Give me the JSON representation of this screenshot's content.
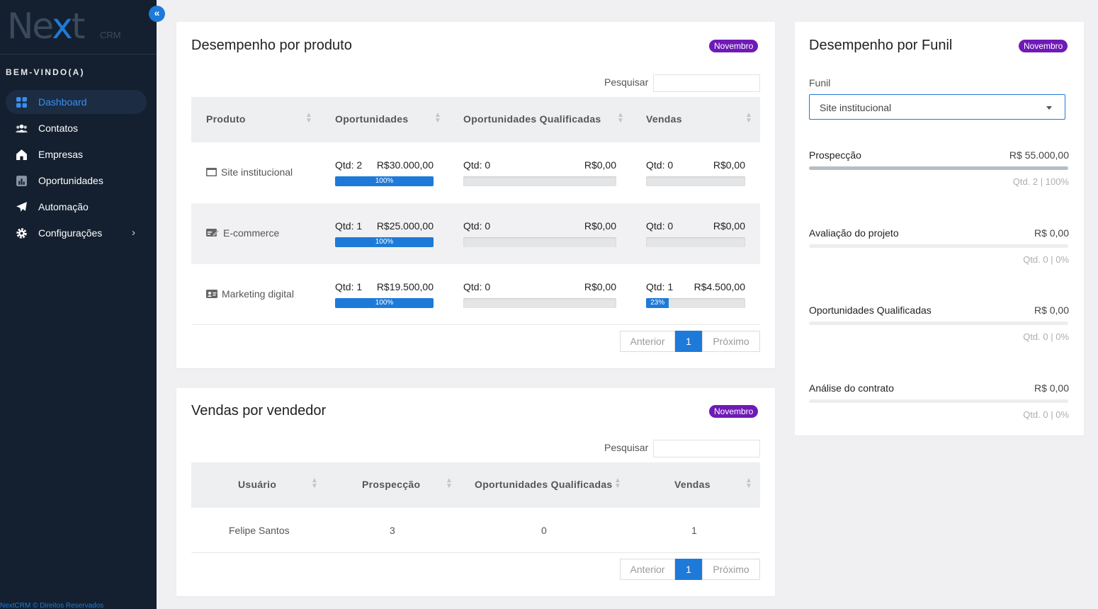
{
  "brand": {
    "name_part1": "Ne",
    "name_x": "x",
    "name_part2": "t",
    "suffix": "CRM",
    "accent": "#1e7ad8"
  },
  "sidebar": {
    "collapse_icon": "«",
    "welcome": "BEM-VINDO(A)",
    "items": [
      {
        "label": "Dashboard",
        "icon": "grid-icon",
        "active": true
      },
      {
        "label": "Contatos",
        "icon": "users-icon"
      },
      {
        "label": "Empresas",
        "icon": "home-icon"
      },
      {
        "label": "Oportunidades",
        "icon": "chart-icon"
      },
      {
        "label": "Automação",
        "icon": "paper-plane-icon"
      },
      {
        "label": "Configurações",
        "icon": "gear-icon",
        "chevron": "›"
      }
    ],
    "footer": "NextCRM © Direitos Reservados"
  },
  "product_card": {
    "title": "Desempenho por produto",
    "badge": "Novembro",
    "search_label": "Pesquisar",
    "columns": [
      "Produto",
      "Oportunidades",
      "Oportunidades Qualificadas",
      "Vendas"
    ],
    "rows": [
      {
        "name": "Site institucional",
        "icon": "browser-icon",
        "op": {
          "qtd": "Qtd: 2",
          "value": "R$30.000,00",
          "pct": 100,
          "pct_label": "100%"
        },
        "oq": {
          "qtd": "Qtd: 0",
          "value": "R$0,00",
          "pct": 0
        },
        "vd": {
          "qtd": "Qtd: 0",
          "value": "R$0,00",
          "pct": 0
        }
      },
      {
        "name": "E-commerce",
        "icon": "card-icon",
        "op": {
          "qtd": "Qtd: 1",
          "value": "R$25.000,00",
          "pct": 100,
          "pct_label": "100%"
        },
        "oq": {
          "qtd": "Qtd: 0",
          "value": "R$0,00",
          "pct": 0
        },
        "vd": {
          "qtd": "Qtd: 0",
          "value": "R$0,00",
          "pct": 0
        }
      },
      {
        "name": "Marketing digital",
        "icon": "id-card-icon",
        "op": {
          "qtd": "Qtd: 1",
          "value": "R$19.500,00",
          "pct": 100,
          "pct_label": "100%"
        },
        "oq": {
          "qtd": "Qtd: 0",
          "value": "R$0,00",
          "pct": 0
        },
        "vd": {
          "qtd": "Qtd: 1",
          "value": "R$4.500,00",
          "pct": 23,
          "pct_label": "23%"
        }
      }
    ],
    "pager": {
      "prev": "Anterior",
      "page": "1",
      "next": "Próximo"
    }
  },
  "seller_card": {
    "title": "Vendas por vendedor",
    "badge": "Novembro",
    "search_label": "Pesquisar",
    "columns": [
      "Usuário",
      "Prospecção",
      "Oportunidades Qualificadas",
      "Vendas"
    ],
    "rows": [
      {
        "user": "Felipe Santos",
        "prospeccao": "3",
        "qualificadas": "0",
        "vendas": "1"
      }
    ],
    "pager": {
      "prev": "Anterior",
      "page": "1",
      "next": "Próximo"
    }
  },
  "funnel_card": {
    "title": "Desempenho por Funil",
    "badge": "Novembro",
    "funnel_label": "Funil",
    "funnel_selected": "Site institucional",
    "stages": [
      {
        "name": "Prospecção",
        "value": "R$ 55.000,00",
        "meta": "Qtd. 2 | 100%",
        "pct": 100
      },
      {
        "name": "Avaliação do projeto",
        "value": "R$ 0,00",
        "meta": "Qtd. 0 | 0%",
        "pct": 0
      },
      {
        "name": "Oportunidades Qualificadas",
        "value": "R$ 0,00",
        "meta": "Qtd. 0 | 0%",
        "pct": 0
      },
      {
        "name": "Análise do contrato",
        "value": "R$ 0,00",
        "meta": "Qtd. 0 | 0%",
        "pct": 0
      }
    ]
  }
}
